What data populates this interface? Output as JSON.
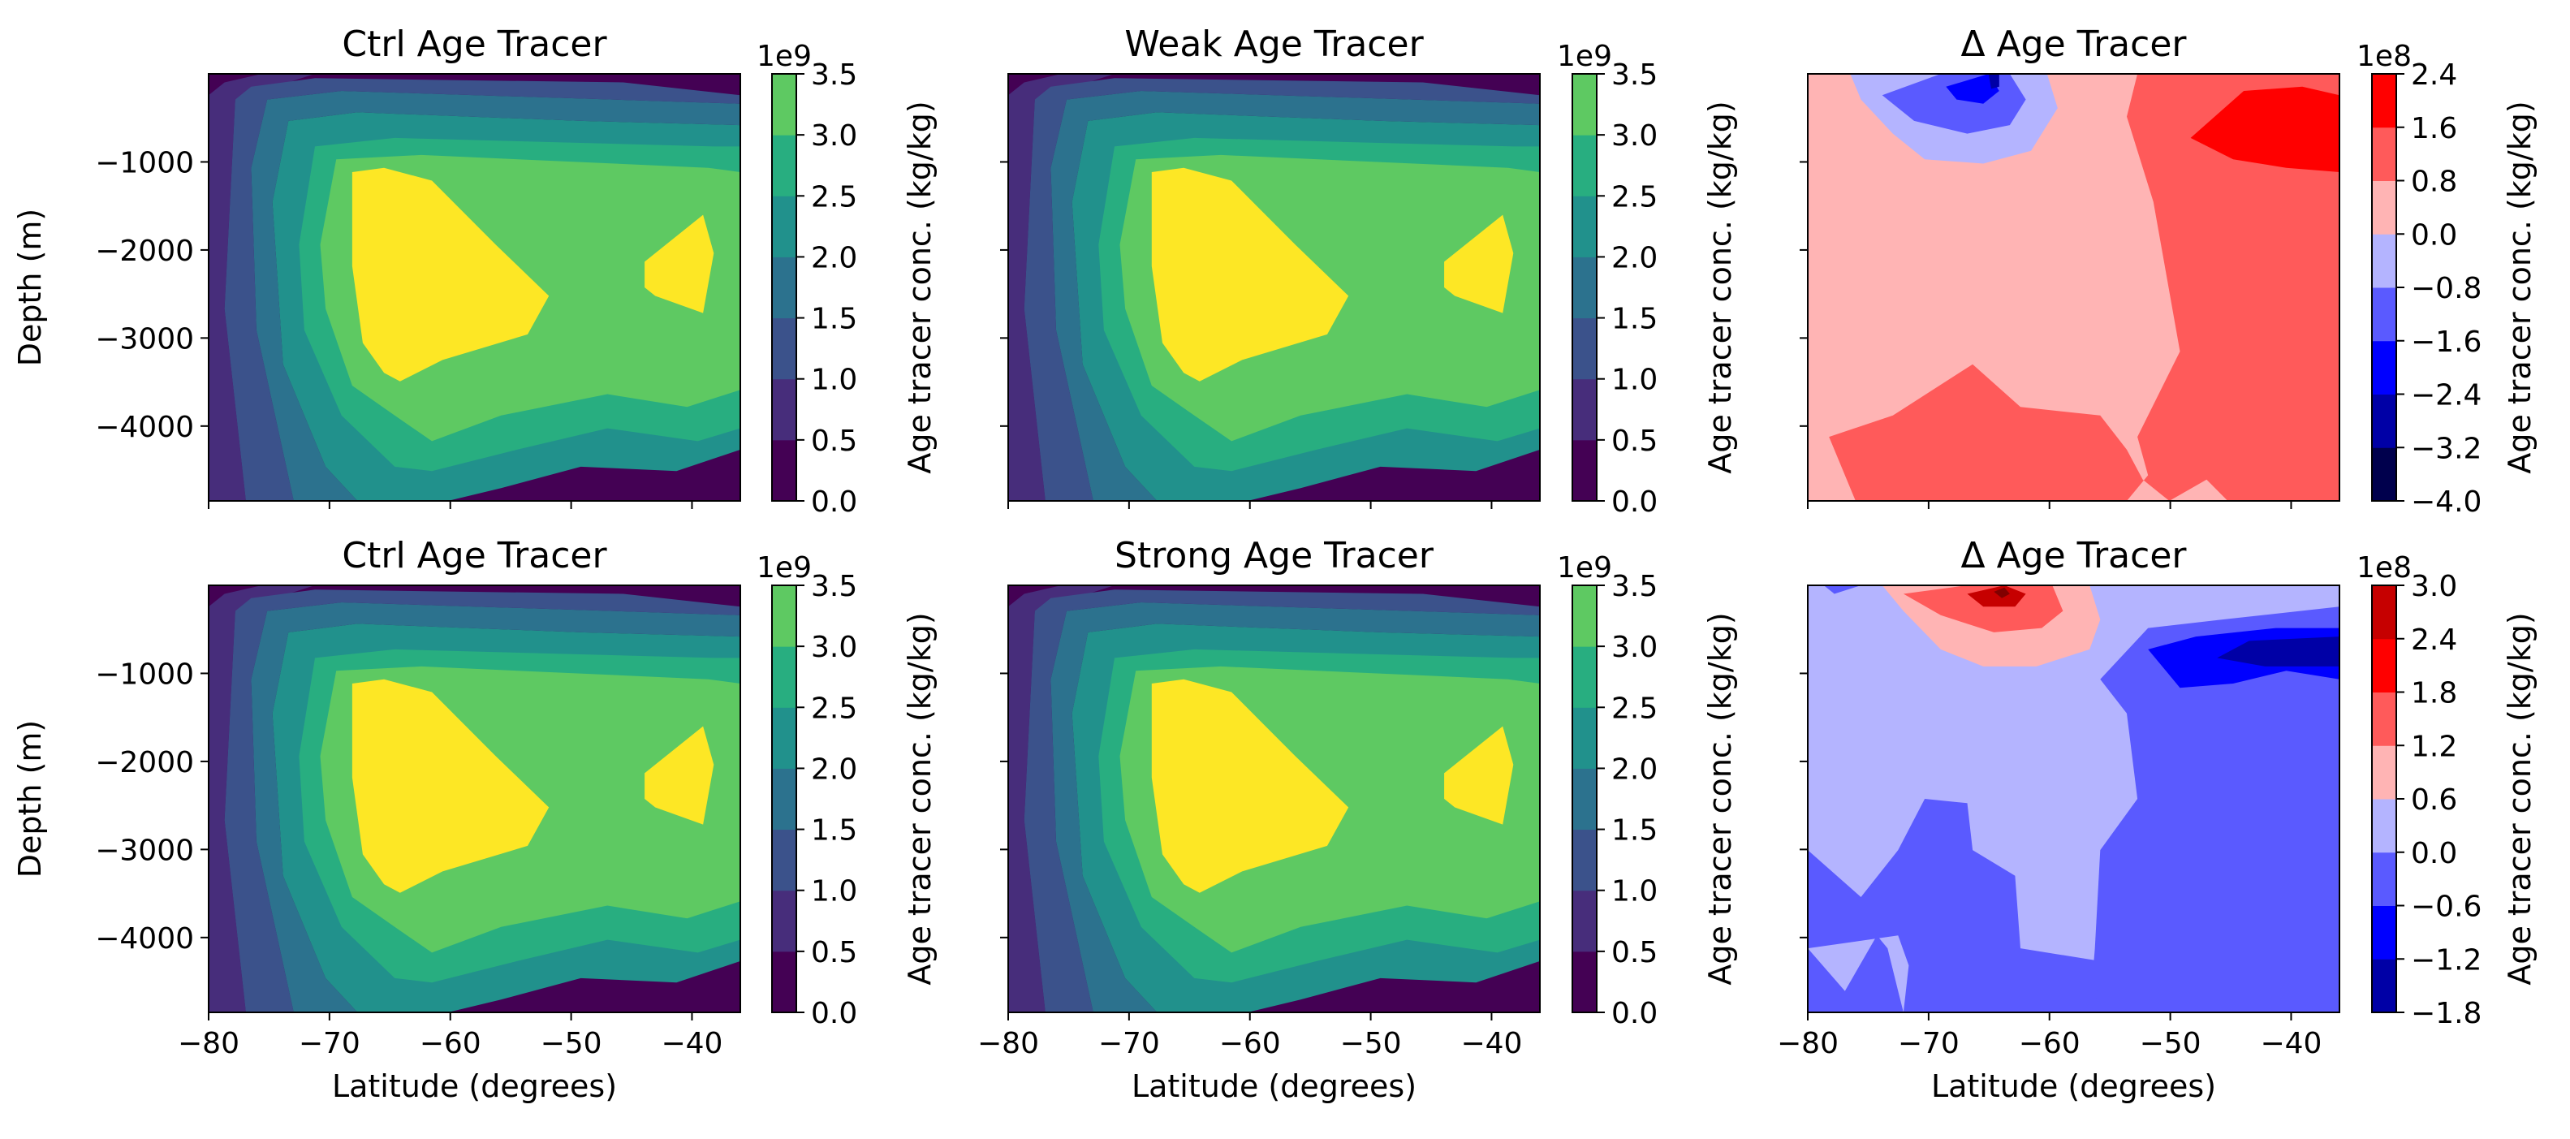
{
  "figure": {
    "colors": {
      "viridis": [
        "#440154",
        "#472d7b",
        "#3b528b",
        "#2c728e",
        "#21918c",
        "#28ae80",
        "#5ec962",
        "#addc30",
        "#fde725"
      ],
      "seismic": [
        "#00004d",
        "#0000a6",
        "#0000ff",
        "#5a5aff",
        "#b4b4ff",
        "#ffb4b4",
        "#ff5a5a",
        "#ff0000",
        "#c60000",
        "#800000"
      ]
    }
  },
  "chart_data": [
    {
      "type": "heatmap",
      "name": "ctrl-top",
      "title": "Ctrl Age Tracer",
      "xlabel": "",
      "ylabel": "Depth (m)",
      "xlim": [
        -80,
        -36
      ],
      "ylim": [
        -4850,
        0
      ],
      "xticks": [
        -80,
        -70,
        -60,
        -50,
        -40
      ],
      "xtick_labels": [
        "",
        "",
        "",
        "",
        ""
      ],
      "yticks": [
        -1000,
        -2000,
        -3000,
        -4000
      ],
      "ytick_labels": [
        "−1000",
        "−2000",
        "−3000",
        "−4000"
      ],
      "colorbar": {
        "label": "Age tracer conc. (kg/kg)",
        "offset": "1e9",
        "cmap": "viridis",
        "levels": [
          0,
          0.5,
          1.0,
          1.5,
          2.0,
          2.5,
          3.0,
          3.5
        ],
        "tick_labels": [
          "0.0",
          "0.5",
          "1.0",
          "1.5",
          "2.0",
          "2.5",
          "3.0",
          "3.5"
        ]
      }
    },
    {
      "type": "heatmap",
      "name": "weak",
      "title": "Weak Age Tracer",
      "xlabel": "",
      "ylabel": "",
      "xlim": [
        -80,
        -36
      ],
      "ylim": [
        -4850,
        0
      ],
      "xticks": [
        -80,
        -70,
        -60,
        -50,
        -40
      ],
      "xtick_labels": [
        "",
        "",
        "",
        "",
        ""
      ],
      "yticks": [
        -1000,
        -2000,
        -3000,
        -4000
      ],
      "ytick_labels": [
        "",
        "",
        "",
        ""
      ],
      "colorbar": {
        "label": "Age tracer conc. (kg/kg)",
        "offset": "1e9",
        "cmap": "viridis",
        "levels": [
          0,
          0.5,
          1.0,
          1.5,
          2.0,
          2.5,
          3.0,
          3.5
        ],
        "tick_labels": [
          "0.0",
          "0.5",
          "1.0",
          "1.5",
          "2.0",
          "2.5",
          "3.0",
          "3.5"
        ]
      }
    },
    {
      "type": "heatmap",
      "name": "delta-top",
      "title": "Δ Age Tracer",
      "xlabel": "",
      "ylabel": "",
      "xlim": [
        -80,
        -36
      ],
      "ylim": [
        -4850,
        0
      ],
      "xticks": [
        -80,
        -70,
        -60,
        -50,
        -40
      ],
      "xtick_labels": [
        "",
        "",
        "",
        "",
        ""
      ],
      "yticks": [
        -1000,
        -2000,
        -3000,
        -4000
      ],
      "ytick_labels": [
        "",
        "",
        "",
        ""
      ],
      "colorbar": {
        "label": "Age tracer conc. (kg/kg)",
        "offset": "1e8",
        "cmap": "seismic",
        "levels": [
          -4.0,
          -3.2,
          -2.4,
          -1.6,
          -0.8,
          0.0,
          0.8,
          1.6,
          2.4
        ],
        "tick_labels": [
          "−4.0",
          "−3.2",
          "−2.4",
          "−1.6",
          "−0.8",
          "0.0",
          "0.8",
          "1.6",
          "2.4"
        ]
      }
    },
    {
      "type": "heatmap",
      "name": "ctrl-bottom",
      "title": "Ctrl Age Tracer",
      "xlabel": "Latitude (degrees)",
      "ylabel": "Depth (m)",
      "xlim": [
        -80,
        -36
      ],
      "ylim": [
        -4850,
        0
      ],
      "xticks": [
        -80,
        -70,
        -60,
        -50,
        -40
      ],
      "xtick_labels": [
        "−80",
        "−70",
        "−60",
        "−50",
        "−40"
      ],
      "yticks": [
        -1000,
        -2000,
        -3000,
        -4000
      ],
      "ytick_labels": [
        "−1000",
        "−2000",
        "−3000",
        "−4000"
      ],
      "colorbar": {
        "label": "Age tracer conc. (kg/kg)",
        "offset": "1e9",
        "cmap": "viridis",
        "levels": [
          0,
          0.5,
          1.0,
          1.5,
          2.0,
          2.5,
          3.0,
          3.5
        ],
        "tick_labels": [
          "0.0",
          "0.5",
          "1.0",
          "1.5",
          "2.0",
          "2.5",
          "3.0",
          "3.5"
        ]
      }
    },
    {
      "type": "heatmap",
      "name": "strong",
      "title": "Strong Age Tracer",
      "xlabel": "Latitude (degrees)",
      "ylabel": "",
      "xlim": [
        -80,
        -36
      ],
      "ylim": [
        -4850,
        0
      ],
      "xticks": [
        -80,
        -70,
        -60,
        -50,
        -40
      ],
      "xtick_labels": [
        "−80",
        "−70",
        "−60",
        "−50",
        "−40"
      ],
      "yticks": [
        -1000,
        -2000,
        -3000,
        -4000
      ],
      "ytick_labels": [
        "",
        "",
        "",
        ""
      ],
      "colorbar": {
        "label": "Age tracer conc. (kg/kg)",
        "offset": "1e9",
        "cmap": "viridis",
        "levels": [
          0,
          0.5,
          1.0,
          1.5,
          2.0,
          2.5,
          3.0,
          3.5
        ],
        "tick_labels": [
          "0.0",
          "0.5",
          "1.0",
          "1.5",
          "2.0",
          "2.5",
          "3.0",
          "3.5"
        ]
      }
    },
    {
      "type": "heatmap",
      "name": "delta-bottom",
      "title": "Δ Age Tracer",
      "xlabel": "Latitude (degrees)",
      "ylabel": "",
      "xlim": [
        -80,
        -36
      ],
      "ylim": [
        -4850,
        0
      ],
      "xticks": [
        -80,
        -70,
        -60,
        -50,
        -40
      ],
      "xtick_labels": [
        "−80",
        "−70",
        "−60",
        "−50",
        "−40"
      ],
      "yticks": [
        -1000,
        -2000,
        -3000,
        -4000
      ],
      "ytick_labels": [
        "",
        "",
        "",
        ""
      ],
      "colorbar": {
        "label": "Age tracer conc. (kg/kg)",
        "offset": "1e8",
        "cmap": "seismic",
        "levels": [
          -1.8,
          -1.2,
          -0.6,
          0.0,
          0.6,
          1.2,
          1.8,
          2.4,
          3.0
        ],
        "tick_labels": [
          "−1.8",
          "−1.2",
          "−0.6",
          "0.0",
          "0.6",
          "1.2",
          "1.8",
          "2.4",
          "3.0"
        ]
      }
    }
  ]
}
